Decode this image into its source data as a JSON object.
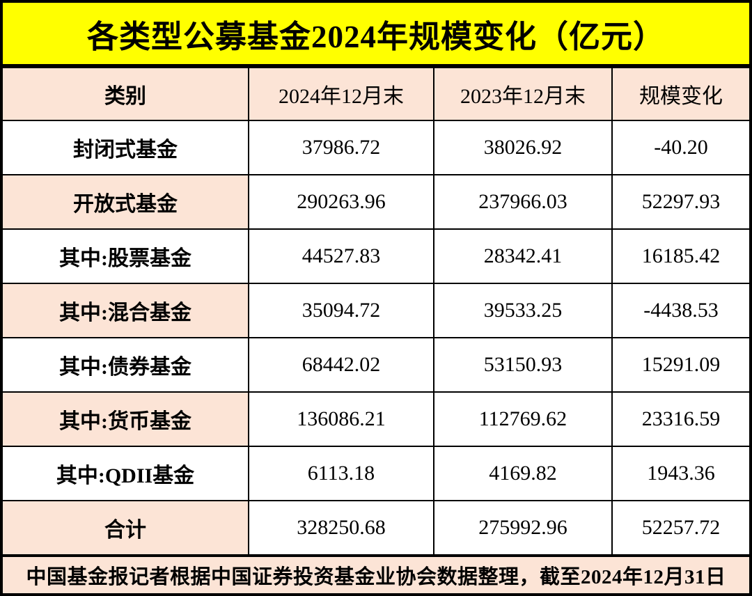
{
  "title": "各类型公募基金2024年规模变化（亿元）",
  "colors": {
    "title_bg": "#FFFF00",
    "shaded_cell_bg": "#FCE4D6",
    "cell_bg": "#FFFFFF",
    "border": "#000000",
    "text": "#000000"
  },
  "table": {
    "headers": [
      "类别",
      "2024年12月末",
      "2023年12月末",
      "规模变化"
    ],
    "rows": [
      {
        "category": "封闭式基金",
        "v2024": "37986.72",
        "v2023": "38026.92",
        "change": "-40.20"
      },
      {
        "category": "开放式基金",
        "v2024": "290263.96",
        "v2023": "237966.03",
        "change": "52297.93"
      },
      {
        "category": "其中:股票基金",
        "v2024": "44527.83",
        "v2023": "28342.41",
        "change": "16185.42"
      },
      {
        "category": "其中:混合基金",
        "v2024": "35094.72",
        "v2023": "39533.25",
        "change": "-4438.53"
      },
      {
        "category": "其中:债券基金",
        "v2024": "68442.02",
        "v2023": "53150.93",
        "change": "15291.09"
      },
      {
        "category": "其中:货币基金",
        "v2024": "136086.21",
        "v2023": "112769.62",
        "change": "23316.59"
      },
      {
        "category": "其中:QDII基金",
        "v2024": "6113.18",
        "v2023": "4169.82",
        "change": "1943.36"
      },
      {
        "category": "合计",
        "v2024": "328250.68",
        "v2023": "275992.96",
        "change": "52257.72"
      }
    ]
  },
  "footer": "中国基金报记者根据中国证券投资基金业协会数据整理，截至2024年12月31日",
  "chart_data": {
    "type": "table",
    "title": "各类型公募基金2024年规模变化（亿元）",
    "columns": [
      "类别",
      "2024年12月末",
      "2023年12月末",
      "规模变化"
    ],
    "rows": [
      [
        "封闭式基金",
        37986.72,
        38026.92,
        -40.2
      ],
      [
        "开放式基金",
        290263.96,
        237966.03,
        52297.93
      ],
      [
        "其中:股票基金",
        44527.83,
        28342.41,
        16185.42
      ],
      [
        "其中:混合基金",
        35094.72,
        39533.25,
        -4438.53
      ],
      [
        "其中:债券基金",
        68442.02,
        53150.93,
        15291.09
      ],
      [
        "其中:货币基金",
        136086.21,
        112769.62,
        23316.59
      ],
      [
        "其中:QDII基金",
        6113.18,
        4169.82,
        1943.36
      ],
      [
        "合计",
        328250.68,
        275992.96,
        52257.72
      ]
    ],
    "unit": "亿元",
    "source_note": "中国基金报记者根据中国证券投资基金业协会数据整理，截至2024年12月31日"
  }
}
